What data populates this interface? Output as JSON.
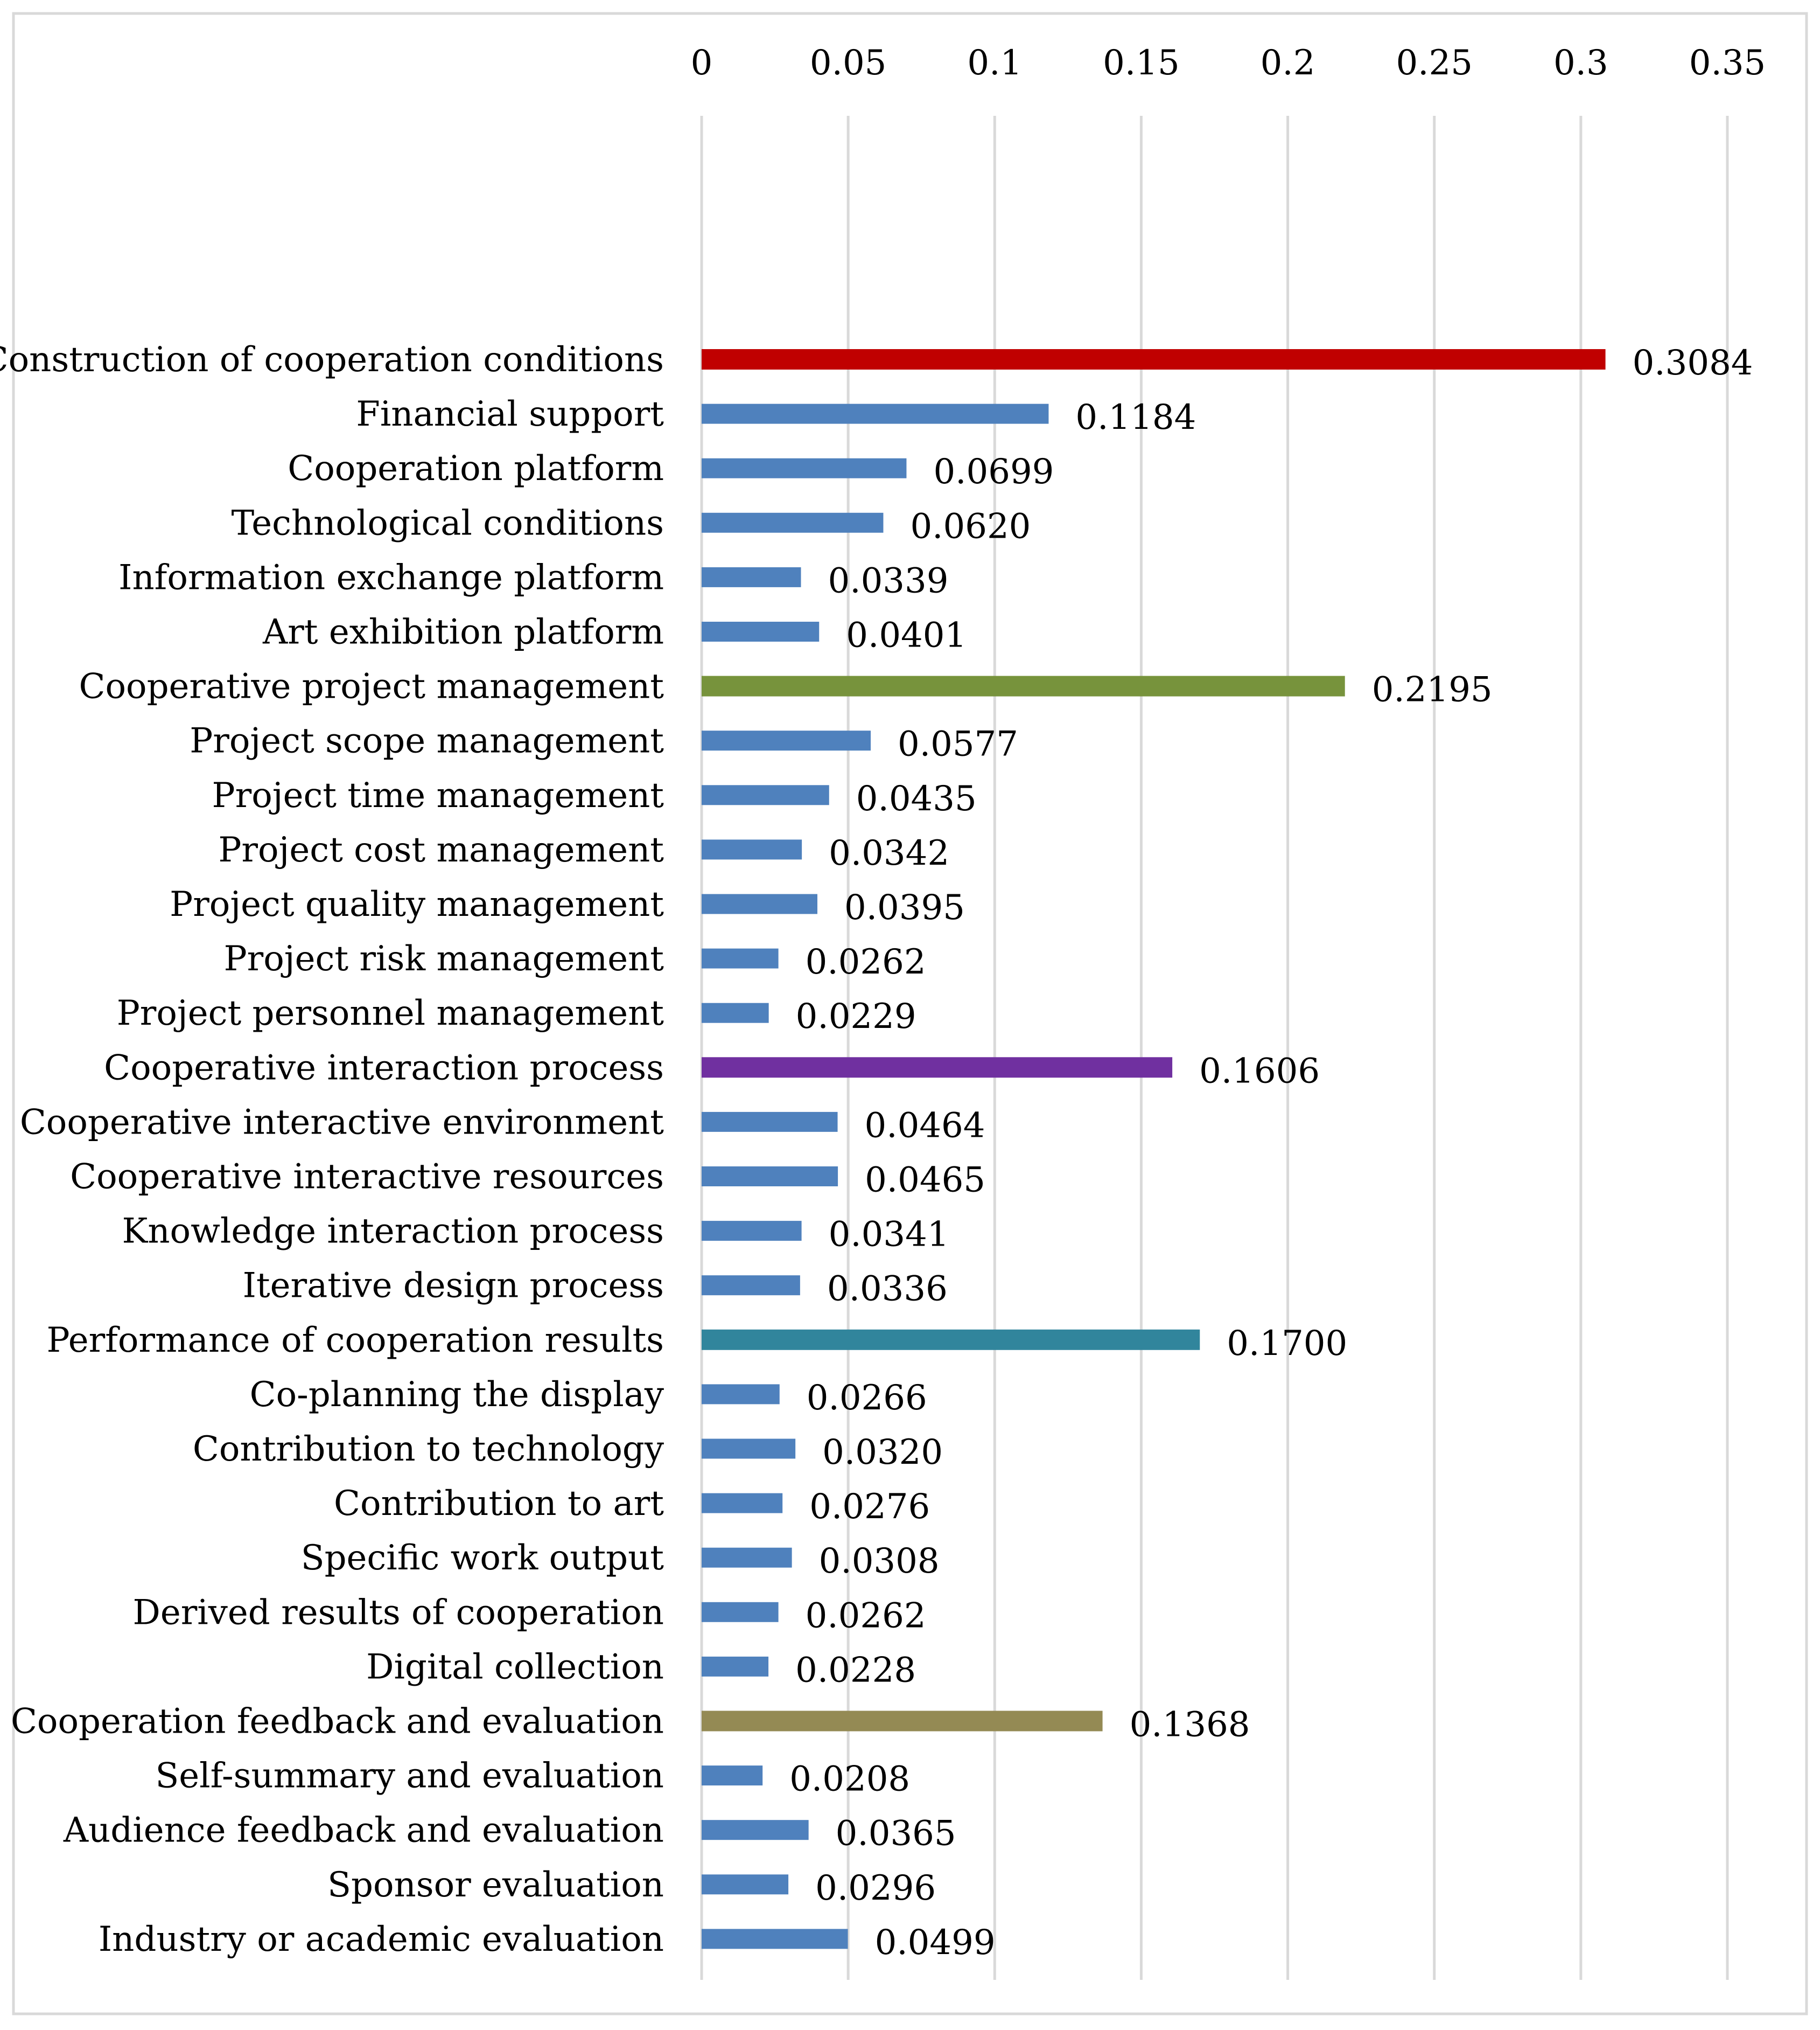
{
  "chart_data": {
    "type": "bar",
    "orientation": "horizontal",
    "title": "",
    "xlabel": "",
    "ylabel": "",
    "xlim": [
      0,
      0.35
    ],
    "xticks": [
      0,
      0.05,
      0.1,
      0.15,
      0.2,
      0.25,
      0.3,
      0.35
    ],
    "xtick_labels": [
      "0",
      "0.05",
      "0.1",
      "0.15",
      "0.2",
      "0.25",
      "0.3",
      "0.35"
    ],
    "axis_position": "top",
    "grid": true,
    "legend": false,
    "colors": {
      "sub": "#4F81BD",
      "group1": "#C00000",
      "group2": "#77933C",
      "group3": "#7030A0",
      "group4": "#31859C",
      "group5": "#948A54",
      "grid": "#D9D9D9",
      "frame": "#D9D9D9"
    },
    "categories": [
      "Construction of cooperation conditions",
      "Financial support",
      "Cooperation platform",
      "Technological conditions",
      "Information exchange platform",
      "Art exhibition platform",
      "Cooperative project management",
      "Project scope management",
      "Project time management",
      "Project cost management",
      "Project quality management",
      "Project risk management",
      "Project personnel management",
      "Cooperative interaction process",
      "Cooperative interactive environment",
      "Cooperative interactive resources",
      "Knowledge interaction process",
      "Iterative design process",
      "Performance of cooperation results",
      "Co-planning the display",
      "Contribution to technology",
      "Contribution to art",
      "Specific work output",
      "Derived results of cooperation",
      "Digital collection",
      "Cooperation feedback and evaluation",
      "Self-summary and evaluation",
      "Audience feedback and evaluation",
      "Sponsor evaluation",
      "Industry or academic evaluation"
    ],
    "values": [
      0.3084,
      0.1184,
      0.0699,
      0.062,
      0.0339,
      0.0401,
      0.2195,
      0.0577,
      0.0435,
      0.0342,
      0.0395,
      0.0262,
      0.0229,
      0.1606,
      0.0464,
      0.0465,
      0.0341,
      0.0336,
      0.17,
      0.0266,
      0.032,
      0.0276,
      0.0308,
      0.0262,
      0.0228,
      0.1368,
      0.0208,
      0.0365,
      0.0296,
      0.0499
    ],
    "value_labels": [
      "0.3084",
      "0.1184",
      "0.0699",
      "0.0620",
      "0.0339",
      "0.0401",
      "0.2195",
      "0.0577",
      "0.0435",
      "0.0342",
      "0.0395",
      "0.0262",
      "0.0229",
      "0.1606",
      "0.0464",
      "0.0465",
      "0.0341",
      "0.0336",
      "0.1700",
      "0.0266",
      "0.0320",
      "0.0276",
      "0.0308",
      "0.0262",
      "0.0228",
      "0.1368",
      "0.0208",
      "0.0365",
      "0.0296",
      "0.0499"
    ],
    "bar_color_keys": [
      "group1",
      "sub",
      "sub",
      "sub",
      "sub",
      "sub",
      "group2",
      "sub",
      "sub",
      "sub",
      "sub",
      "sub",
      "sub",
      "group3",
      "sub",
      "sub",
      "sub",
      "sub",
      "group4",
      "sub",
      "sub",
      "sub",
      "sub",
      "sub",
      "sub",
      "group5",
      "sub",
      "sub",
      "sub",
      "sub"
    ],
    "is_group": [
      true,
      false,
      false,
      false,
      false,
      false,
      true,
      false,
      false,
      false,
      false,
      false,
      false,
      true,
      false,
      false,
      false,
      false,
      true,
      false,
      false,
      false,
      false,
      false,
      false,
      true,
      false,
      false,
      false,
      false
    ]
  }
}
